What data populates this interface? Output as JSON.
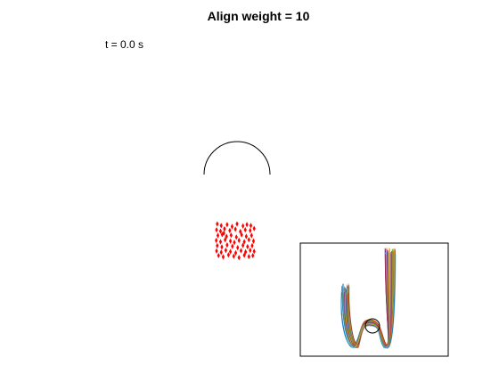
{
  "title": "Align weight = 10",
  "time_label": "t = 0.0 s",
  "chart_data": [
    {
      "type": "scatter",
      "description_source": "main animation frame",
      "obstacle": {
        "shape": "semicircle",
        "center": [
          0,
          0
        ],
        "radius": 1,
        "color": "#000000"
      },
      "agents": {
        "color": "#ff0000",
        "count": 60,
        "x": [
          -0.6,
          -0.48,
          -0.3,
          -0.15,
          0.0,
          0.18,
          0.3,
          0.42,
          -0.62,
          -0.5,
          -0.38,
          -0.22,
          -0.05,
          0.1,
          0.25,
          0.4,
          0.52,
          -0.58,
          -0.45,
          -0.32,
          -0.18,
          -0.02,
          0.14,
          0.28,
          0.44,
          -0.63,
          -0.5,
          -0.36,
          -0.2,
          -0.08,
          0.06,
          0.22,
          0.36,
          0.5,
          -0.6,
          -0.46,
          -0.3,
          -0.14,
          0.02,
          0.18,
          0.32,
          0.46,
          -0.62,
          -0.48,
          -0.34,
          -0.2,
          -0.04,
          0.12,
          0.26,
          0.4,
          0.52,
          -0.56,
          -0.42,
          -0.26,
          -0.1,
          0.06,
          0.22,
          0.36,
          0.48,
          -0.4
        ],
        "y": [
          -1.5,
          -1.55,
          -1.52,
          -1.58,
          -1.5,
          -1.56,
          -1.52,
          -1.55,
          -1.68,
          -1.72,
          -1.65,
          -1.7,
          -1.66,
          -1.73,
          -1.68,
          -1.7,
          -1.64,
          -1.85,
          -1.82,
          -1.88,
          -1.84,
          -1.9,
          -1.83,
          -1.88,
          -1.85,
          -2.0,
          -2.04,
          -1.98,
          -2.02,
          -2.06,
          -2.0,
          -2.04,
          -1.98,
          -2.02,
          -2.16,
          -2.2,
          -2.14,
          -2.18,
          -2.22,
          -2.15,
          -2.19,
          -2.16,
          -2.32,
          -2.36,
          -2.3,
          -2.34,
          -2.38,
          -2.31,
          -2.35,
          -2.3,
          -2.33,
          -2.46,
          -2.5,
          -2.44,
          -2.48,
          -2.52,
          -2.45,
          -2.49,
          -2.46,
          -1.78
        ]
      }
    },
    {
      "type": "line",
      "description_source": "inset trajectory overview",
      "series_count": 40,
      "colors": [
        "#0072BD",
        "#D95319",
        "#EDB120",
        "#7E2F8E",
        "#77AC30",
        "#4DBEEE",
        "#A2142F"
      ]
    }
  ]
}
